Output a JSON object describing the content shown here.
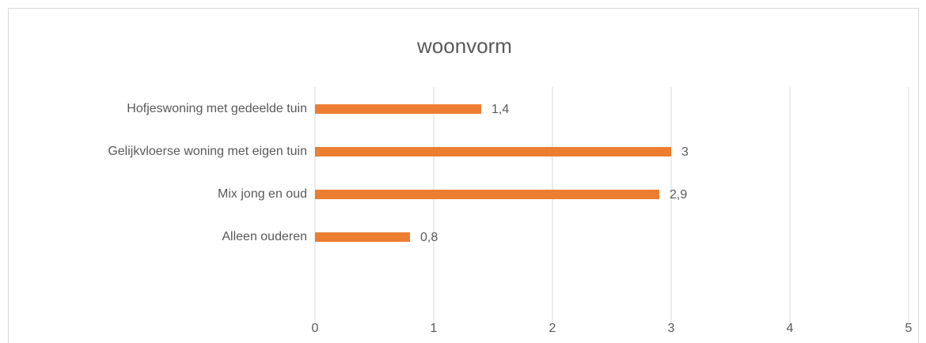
{
  "chart_data": {
    "type": "bar",
    "orientation": "horizontal",
    "title": "woonvorm",
    "categories": [
      "Hofjeswoning met gedeelde tuin",
      "Gelijkvloerse woning met eigen tuin",
      "Mix jong en oud",
      "Alleen ouderen"
    ],
    "values": [
      1.4,
      3,
      2.9,
      0.8
    ],
    "value_labels": [
      "1,4",
      "3",
      "2,9",
      "0,8"
    ],
    "color": "#ed7d31",
    "xlim": [
      0,
      5
    ],
    "xticks": [
      0,
      1,
      2,
      3,
      4,
      5
    ],
    "grid": true
  }
}
